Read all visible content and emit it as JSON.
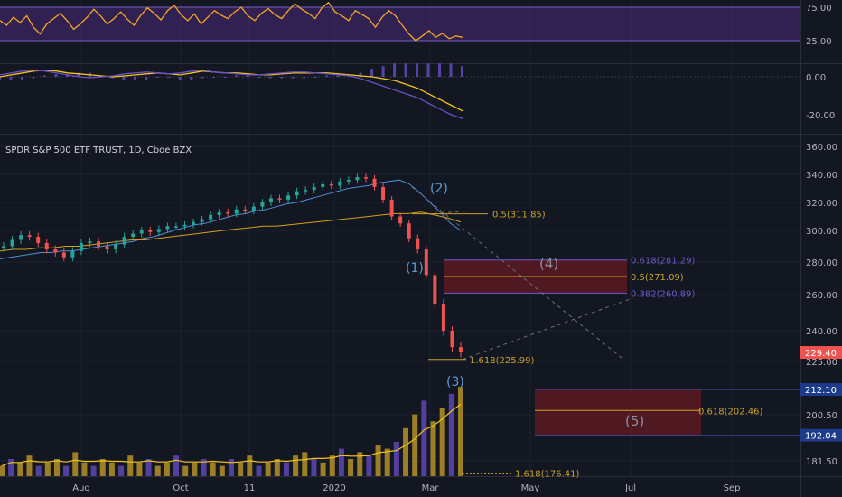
{
  "chart_data": {
    "type": "line",
    "title": "SPDR S&P 500 ETF TRUST, 1D, Cboe BZX",
    "x_ticks": [
      "Aug",
      "Oct",
      "11",
      "2020",
      "Mar",
      "May",
      "Jul",
      "Sep"
    ],
    "panels": {
      "rsi": {
        "levels": [
          75,
          25
        ],
        "y_ticks": [
          "75.00",
          "25.00"
        ],
        "series": [
          {
            "color": "#f5a623",
            "values": [
              55,
              48,
              60,
              52,
              62,
              45,
              35,
              50,
              58,
              66,
              55,
              42,
              50,
              60,
              72,
              62,
              50,
              58,
              68,
              57,
              48,
              63,
              74,
              66,
              56,
              70,
              78,
              64,
              55,
              65,
              50,
              60,
              70,
              63,
              58,
              68,
              75,
              62,
              55,
              66,
              73,
              64,
              58,
              70,
              80,
              72,
              66,
              58,
              74,
              82,
              68,
              62,
              55,
              70,
              64,
              58,
              45,
              60,
              70,
              62,
              48,
              35,
              25,
              32,
              40,
              30,
              36,
              28,
              32,
              30
            ]
          }
        ]
      },
      "macd": {
        "y_ticks": [
          "0.00",
          "-20.00"
        ],
        "series": [
          {
            "name": "",
            "color": "#f5c518",
            "values": [
              0,
              1,
              2,
              3,
              3.5,
              3,
              2,
              1.5,
              1,
              0.5,
              0,
              0.5,
              1,
              1.5,
              2,
              1.5,
              1,
              2,
              3,
              2.5,
              2,
              2,
              1.5,
              1,
              1,
              1.5,
              2,
              2,
              2,
              2,
              1.5,
              1,
              0.5,
              0,
              -1,
              -2,
              -4,
              -6,
              -9,
              -12,
              -15,
              -18
            ]
          },
          {
            "name": "",
            "color": "#6a4ec8",
            "values": [
              1,
              2,
              3,
              3.5,
              3,
              2,
              1,
              0,
              -0.5,
              0,
              0.5,
              1.5,
              2,
              2.5,
              2,
              1.5,
              2,
              3,
              3.5,
              2.5,
              2,
              1.5,
              1,
              1,
              1.5,
              2,
              2.5,
              2.5,
              2,
              1.5,
              1,
              0.5,
              -1,
              -3,
              -5,
              -7,
              -9,
              -11,
              -14,
              -17,
              -20,
              -22
            ]
          }
        ]
      },
      "price": {
        "y_ticks": [
          "360.00",
          "340.00",
          "320.00",
          "300.00",
          "280.00",
          "260.00",
          "240.00",
          "225.00",
          "200.50",
          "181.50"
        ],
        "y_range": [
          170,
          365
        ],
        "last_price": "229.40",
        "right_labels": [
          {
            "text": "212.10",
            "value": 212.1
          },
          {
            "text": "192.04",
            "value": 192.04
          }
        ],
        "close": [
          290,
          294,
          297,
          296,
          292,
          288,
          286,
          283,
          287,
          292,
          293,
          290,
          288,
          291,
          296,
          298,
          300,
          299,
          301,
          303,
          303,
          304,
          306,
          308,
          311,
          313,
          312,
          315,
          314,
          317,
          320,
          323,
          322,
          325,
          328,
          329,
          331,
          333,
          332,
          335,
          336,
          338,
          337,
          331,
          322,
          310,
          305,
          295,
          288,
          272,
          255,
          240,
          232,
          229.4
        ],
        "ma_blue": [
          282,
          283,
          284,
          285,
          286,
          286,
          287,
          287,
          288,
          289,
          290,
          291,
          292,
          293,
          295,
          296,
          298,
          300,
          302,
          304,
          305,
          307,
          309,
          311,
          312,
          314,
          315,
          317,
          319,
          320,
          322,
          324,
          326,
          328,
          330,
          331,
          332,
          334,
          335,
          336,
          333,
          327,
          320,
          313,
          305,
          300
        ],
        "ma_gold": [
          287,
          288,
          288,
          289,
          289,
          290,
          290,
          291,
          292,
          293,
          294,
          294,
          295,
          296,
          297,
          298,
          299,
          300,
          301,
          302,
          303,
          303,
          304,
          305,
          306,
          307,
          308,
          309,
          310,
          311,
          312,
          312,
          313,
          311,
          309,
          306
        ],
        "fib_levels": [
          {
            "label": "0.5(311.85)",
            "value": 311.85
          },
          {
            "label": "0.618(281.29)",
            "value": 281.29
          },
          {
            "label": "0.5(271.09)",
            "value": 271.09
          },
          {
            "label": "0.382(260.89)",
            "value": 260.89
          },
          {
            "label": "1.618(225.99)",
            "value": 225.99
          },
          {
            "label": "0.618(202.46)",
            "value": 202.46
          },
          {
            "label": "1.618(176.41)",
            "value": 176.41
          }
        ],
        "waves": [
          "(1)",
          "(2)",
          "(3)",
          "(4)",
          "(5)"
        ]
      },
      "volume": {
        "values": [
          3,
          5,
          4,
          6,
          3,
          4,
          5,
          3,
          7,
          4,
          3,
          5,
          4,
          3,
          6,
          4,
          5,
          3,
          4,
          6,
          3,
          4,
          5,
          4,
          3,
          5,
          4,
          6,
          3,
          4,
          5,
          4,
          6,
          7,
          5,
          4,
          6,
          8,
          5,
          7,
          6,
          9,
          8,
          10,
          14,
          18,
          22,
          16,
          20,
          24,
          26
        ]
      }
    },
    "colors": {
      "background": "#131722",
      "grid": "#1e2230",
      "up": "#26a69a",
      "down": "#ef5350",
      "rsi_band": "#4a2a7a",
      "macd_hist": "#6a4ec8",
      "fib": "#c9a227",
      "zone": "#5c1a22",
      "wave_text": "#5b9bd5",
      "axis_text": "#b2b5be",
      "last_price_bg": "#ef5350",
      "label_bg": "#1e3a8a"
    }
  }
}
